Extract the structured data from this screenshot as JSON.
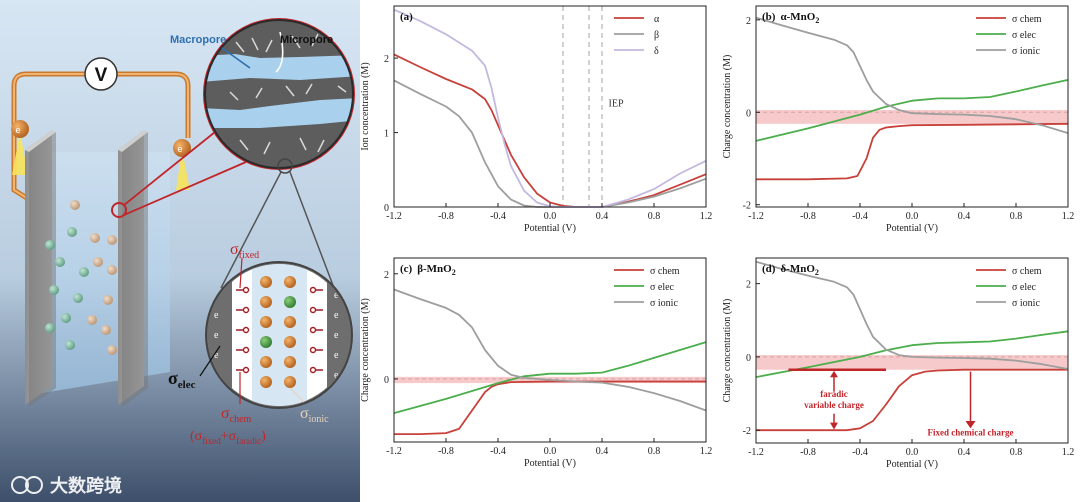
{
  "schematic": {
    "voltmeter": "V",
    "electron": "e",
    "macropore": "Macropore",
    "micropore": "Micropore",
    "e_minus": "e",
    "plus": "+",
    "sigma_fixed_base": "σ",
    "sigma_fixed_sub": "fixed",
    "sigma_elec_base": "σ",
    "sigma_elec_sub": "elec",
    "sigma_chem_base": "σ",
    "sigma_chem_sub": "chem",
    "sigma_chem_formula_open": "(σ",
    "sigma_chem_formula_fixed": "fixed",
    "sigma_chem_formula_plus": "+σ",
    "sigma_chem_formula_faradic": "faradic",
    "sigma_chem_formula_close": ")",
    "sigma_ionic_base": "σ",
    "sigma_ionic_sub": "ionic",
    "watermark": "大数跨境"
  },
  "colors": {
    "red": "#c8403a",
    "green": "#4cae4c",
    "gray": "#9e9e9e",
    "lavender": "#c4b8e0",
    "pink_band": "#f6caca"
  },
  "chart_data": [
    {
      "id": "a",
      "type": "line",
      "label": "(a)",
      "title_plain": "",
      "xlabel": "Potential (V)",
      "ylabel": "Ion concentration (M)",
      "xlim": [
        -1.2,
        1.2
      ],
      "ylim": [
        0,
        2.7
      ],
      "xticks": [
        "-1.2",
        "-0.8",
        "-0.4",
        "0.0",
        "0.4",
        "0.8",
        "1.2"
      ],
      "yticks": [
        {
          "v": 0,
          "t": "0"
        },
        {
          "v": 1,
          "t": "1"
        },
        {
          "v": 2,
          "t": "2"
        }
      ],
      "annotation": {
        "text": "IEP",
        "x": 0.45,
        "y": 1.35
      },
      "vlines": [
        0.1,
        0.3,
        0.4
      ],
      "legend": [
        "α",
        "β",
        "δ"
      ],
      "series": [
        {
          "name": "α",
          "color": "#c8403a",
          "x": [
            -1.2,
            -1.0,
            -0.8,
            -0.6,
            -0.5,
            -0.45,
            -0.4,
            -0.3,
            -0.2,
            -0.1,
            0.0,
            0.1,
            0.2,
            0.3,
            0.4,
            0.6,
            0.8,
            1.0,
            1.2
          ],
          "y": [
            2.05,
            1.88,
            1.72,
            1.58,
            1.45,
            1.3,
            1.1,
            0.7,
            0.4,
            0.18,
            0.06,
            0.015,
            0.0,
            0.0,
            0.0,
            0.07,
            0.16,
            0.3,
            0.44
          ]
        },
        {
          "name": "β",
          "color": "#9e9e9e",
          "x": [
            -1.2,
            -1.0,
            -0.8,
            -0.7,
            -0.6,
            -0.5,
            -0.4,
            -0.3,
            -0.2,
            -0.1,
            0.0,
            0.1,
            0.2,
            0.3,
            0.4,
            0.6,
            0.8,
            1.0,
            1.2
          ],
          "y": [
            1.7,
            1.52,
            1.35,
            1.22,
            1.0,
            0.6,
            0.28,
            0.1,
            0.02,
            0.0,
            0.0,
            0.0,
            0.0,
            0.0,
            0.0,
            0.06,
            0.14,
            0.25,
            0.38
          ]
        },
        {
          "name": "δ",
          "color": "#c4b8e0",
          "x": [
            -1.2,
            -1.0,
            -0.8,
            -0.6,
            -0.5,
            -0.45,
            -0.4,
            -0.35,
            -0.3,
            -0.2,
            -0.1,
            0.0,
            0.1,
            0.2,
            0.3,
            0.4,
            0.6,
            0.8,
            1.0,
            1.2
          ],
          "y": [
            2.65,
            2.5,
            2.32,
            2.1,
            1.9,
            1.6,
            1.2,
            0.85,
            0.55,
            0.22,
            0.06,
            0.01,
            0.0,
            0.0,
            0.0,
            0.0,
            0.1,
            0.24,
            0.45,
            0.62
          ]
        }
      ]
    },
    {
      "id": "b",
      "type": "line",
      "label": "(b)",
      "title_plain": "α-MnO",
      "title_sub": "2",
      "xlabel": "Potential (V)",
      "ylabel": "Charge concentration (M)",
      "xlim": [
        -1.2,
        1.2
      ],
      "ylim": [
        -2.05,
        2.3
      ],
      "xticks": [
        "-1.2",
        "-0.8",
        "-0.4",
        "0.0",
        "0.4",
        "0.8",
        "1.2"
      ],
      "yticks": [
        {
          "v": -2,
          "t": "-2"
        },
        {
          "v": 0,
          "t": "0"
        },
        {
          "v": 2,
          "t": "2"
        }
      ],
      "band": [
        -0.25,
        0.05
      ],
      "zeroline": true,
      "legend": [
        "σ chem",
        "σ elec",
        "σ ionic"
      ],
      "series": [
        {
          "name": "σ chem",
          "color": "#c8403a",
          "x": [
            -1.2,
            -0.8,
            -0.5,
            -0.42,
            -0.35,
            -0.3,
            -0.25,
            -0.2,
            -0.1,
            0.0,
            0.4,
            0.8,
            1.2
          ],
          "y": [
            -1.45,
            -1.45,
            -1.43,
            -1.38,
            -1.0,
            -0.55,
            -0.38,
            -0.33,
            -0.3,
            -0.28,
            -0.27,
            -0.26,
            -0.25
          ]
        },
        {
          "name": "σ elec",
          "color": "#4cae4c",
          "x": [
            -1.2,
            -0.8,
            -0.4,
            -0.2,
            0.0,
            0.2,
            0.4,
            0.6,
            0.8,
            1.0,
            1.2
          ],
          "y": [
            -0.62,
            -0.35,
            -0.05,
            0.12,
            0.25,
            0.3,
            0.3,
            0.33,
            0.45,
            0.58,
            0.7
          ]
        },
        {
          "name": "σ ionic",
          "color": "#9e9e9e",
          "x": [
            -1.2,
            -1.0,
            -0.8,
            -0.6,
            -0.5,
            -0.45,
            -0.4,
            -0.35,
            -0.3,
            -0.2,
            -0.1,
            0.0,
            0.2,
            0.4,
            0.6,
            0.8,
            1.0,
            1.2
          ],
          "y": [
            2.05,
            1.88,
            1.72,
            1.57,
            1.45,
            1.3,
            1.0,
            0.7,
            0.45,
            0.18,
            0.05,
            -0.02,
            -0.04,
            -0.05,
            -0.08,
            -0.15,
            -0.28,
            -0.45
          ]
        }
      ]
    },
    {
      "id": "c",
      "type": "line",
      "label": "(c)",
      "title_plain": "β-MnO",
      "title_sub": "2",
      "xlabel": "Potential (V)",
      "ylabel": "Charge concentration (M)",
      "xlim": [
        -1.2,
        1.2
      ],
      "ylim": [
        -1.2,
        2.3
      ],
      "xticks": [
        "-1.2",
        "-0.8",
        "-0.4",
        "0.0",
        "0.4",
        "0.8",
        "1.2"
      ],
      "yticks": [
        {
          "v": 0,
          "t": "0"
        },
        {
          "v": 2,
          "t": "2"
        }
      ],
      "band": [
        -0.08,
        0.04
      ],
      "zeroline": true,
      "legend": [
        "σ chem",
        "σ elec",
        "σ ionic"
      ],
      "series": [
        {
          "name": "σ chem",
          "color": "#c8403a",
          "x": [
            -1.2,
            -1.0,
            -0.8,
            -0.7,
            -0.6,
            -0.5,
            -0.45,
            -0.4,
            -0.3,
            0.0,
            0.4,
            0.8,
            1.2
          ],
          "y": [
            -1.05,
            -1.05,
            -1.03,
            -0.95,
            -0.6,
            -0.25,
            -0.15,
            -0.1,
            -0.06,
            -0.05,
            -0.05,
            -0.05,
            -0.05
          ]
        },
        {
          "name": "σ elec",
          "color": "#4cae4c",
          "x": [
            -1.2,
            -0.8,
            -0.4,
            -0.2,
            0.0,
            0.2,
            0.4,
            0.6,
            0.8,
            1.0,
            1.2
          ],
          "y": [
            -0.65,
            -0.38,
            -0.08,
            0.05,
            0.1,
            0.1,
            0.12,
            0.25,
            0.4,
            0.55,
            0.7
          ]
        },
        {
          "name": "σ ionic",
          "color": "#9e9e9e",
          "x": [
            -1.2,
            -1.0,
            -0.8,
            -0.7,
            -0.6,
            -0.5,
            -0.4,
            -0.3,
            -0.2,
            -0.1,
            0.0,
            0.2,
            0.4,
            0.6,
            0.8,
            1.0,
            1.2
          ],
          "y": [
            1.7,
            1.52,
            1.35,
            1.22,
            0.98,
            0.55,
            0.25,
            0.08,
            0.02,
            0.0,
            -0.02,
            -0.05,
            -0.07,
            -0.15,
            -0.27,
            -0.42,
            -0.6
          ]
        }
      ]
    },
    {
      "id": "d",
      "type": "line",
      "label": "(d)",
      "title_plain": "δ-MnO",
      "title_sub": "2",
      "xlabel": "Potential (V)",
      "ylabel": "Charge concentration (M)",
      "xlim": [
        -1.2,
        1.2
      ],
      "ylim": [
        -2.35,
        2.7
      ],
      "xticks": [
        "-1.2",
        "-0.8",
        "-0.4",
        "0.0",
        "0.4",
        "0.8",
        "1.2"
      ],
      "yticks": [
        {
          "v": -2,
          "t": "-2"
        },
        {
          "v": 0,
          "t": "0"
        },
        {
          "v": 2,
          "t": "2"
        }
      ],
      "band": [
        -0.35,
        0.05
      ],
      "zeroline": true,
      "legend": [
        "σ chem",
        "σ elec",
        "σ ionic"
      ],
      "annotations": [
        {
          "text": "faradic",
          "x": -0.6,
          "y": -1.1
        },
        {
          "text": "variable charge",
          "x": -0.6,
          "y": -1.4
        },
        {
          "text": "Fixed chemical charge",
          "x": 0.45,
          "y": -2.15
        }
      ],
      "segment": {
        "x": [
          -0.95,
          -0.2
        ],
        "y": -0.35
      },
      "series": [
        {
          "name": "σ chem",
          "color": "#c8403a",
          "x": [
            -1.2,
            -0.8,
            -0.5,
            -0.4,
            -0.3,
            -0.2,
            -0.1,
            0.0,
            0.1,
            0.2,
            0.4,
            0.8,
            1.2
          ],
          "y": [
            -2.0,
            -2.0,
            -2.0,
            -1.95,
            -1.75,
            -1.3,
            -0.8,
            -0.5,
            -0.4,
            -0.37,
            -0.35,
            -0.35,
            -0.35
          ]
        },
        {
          "name": "σ elec",
          "color": "#4cae4c",
          "x": [
            -1.2,
            -0.8,
            -0.4,
            -0.2,
            0.0,
            0.2,
            0.4,
            0.6,
            0.8,
            1.0,
            1.2
          ],
          "y": [
            -0.55,
            -0.28,
            0.0,
            0.18,
            0.32,
            0.38,
            0.4,
            0.42,
            0.5,
            0.6,
            0.7
          ]
        },
        {
          "name": "σ ionic",
          "color": "#9e9e9e",
          "x": [
            -1.2,
            -1.0,
            -0.8,
            -0.6,
            -0.5,
            -0.45,
            -0.4,
            -0.35,
            -0.3,
            -0.2,
            -0.1,
            0.0,
            0.2,
            0.4,
            0.6,
            0.8,
            1.0,
            1.2
          ],
          "y": [
            2.6,
            2.4,
            2.22,
            2.05,
            1.9,
            1.7,
            1.3,
            0.9,
            0.55,
            0.2,
            0.05,
            0.0,
            -0.02,
            -0.03,
            -0.05,
            -0.1,
            -0.2,
            -0.33
          ]
        }
      ]
    }
  ]
}
